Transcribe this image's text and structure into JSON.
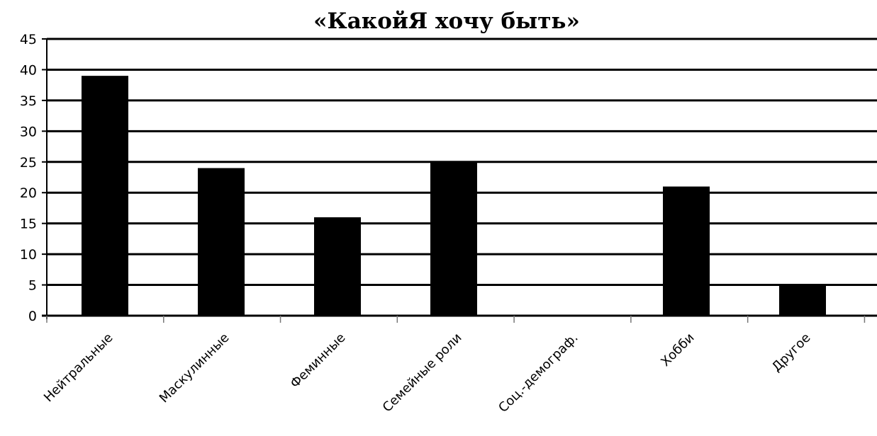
{
  "chart_data": {
    "type": "bar",
    "title": "«КакойЯ хочу быть»",
    "categories": [
      "Нейтральные",
      "Маскулинные",
      "Феминные",
      "Семейные роли",
      "Соц.-демограф.",
      "Хобби",
      "Другое"
    ],
    "values": [
      39,
      24,
      16,
      25,
      0,
      21,
      5
    ],
    "ylim": [
      0,
      45
    ],
    "yticks": [
      0,
      5,
      10,
      15,
      20,
      25,
      30,
      35,
      40,
      45
    ],
    "xlabel": "",
    "ylabel": "",
    "grid": true,
    "legend": "none",
    "bar_color": "#000000",
    "grid_color": "#000000"
  }
}
